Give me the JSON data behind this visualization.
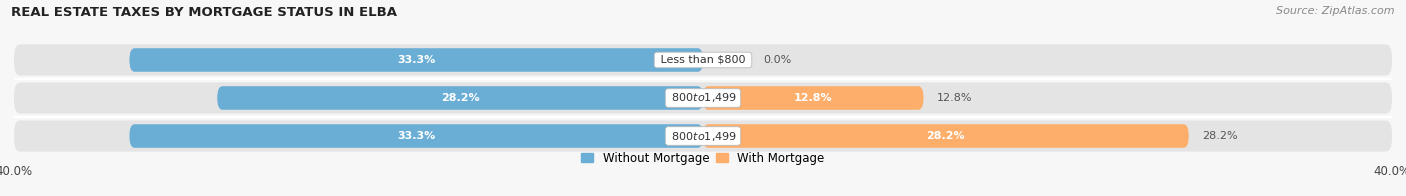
{
  "title": "REAL ESTATE TAXES BY MORTGAGE STATUS IN ELBA",
  "source": "Source: ZipAtlas.com",
  "categories": [
    "Less than $800",
    "$800 to $1,499",
    "$800 to $1,499"
  ],
  "without_mortgage": [
    33.3,
    28.2,
    33.3
  ],
  "with_mortgage": [
    0.0,
    12.8,
    28.2
  ],
  "without_mortgage_color": "#6aaed6",
  "with_mortgage_color": "#fdae6b",
  "bar_bg_color": "#e4e4e4",
  "xlim": 40.0,
  "bar_height": 0.62,
  "bg_bar_height": 0.82,
  "figsize": [
    14.06,
    1.96
  ],
  "dpi": 100,
  "without_label": "Without Mortgage",
  "with_label": "With Mortgage",
  "fig_bg": "#f7f7f7",
  "label_fontsize": 8.0,
  "title_fontsize": 9.5,
  "source_fontsize": 8.0,
  "tick_fontsize": 8.5
}
